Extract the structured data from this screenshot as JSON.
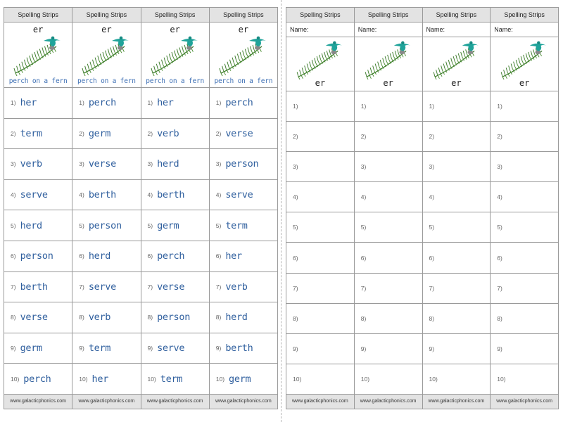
{
  "strip_title": "Spelling Strips",
  "sound": "er",
  "caption": "perch on a fern",
  "footer": "www.galacticphonics.com",
  "name_label": "Name:",
  "numbers": [
    "1)",
    "2)",
    "3)",
    "4)",
    "5)",
    "6)",
    "7)",
    "8)",
    "9)",
    "10)"
  ],
  "lists": [
    [
      "her",
      "term",
      "verb",
      "serve",
      "herd",
      "person",
      "berth",
      "verse",
      "germ",
      "perch"
    ],
    [
      "perch",
      "germ",
      "verse",
      "berth",
      "person",
      "herd",
      "serve",
      "verb",
      "term",
      "her"
    ],
    [
      "her",
      "verb",
      "herd",
      "berth",
      "germ",
      "perch",
      "verse",
      "person",
      "serve",
      "term"
    ],
    [
      "perch",
      "verse",
      "person",
      "serve",
      "term",
      "her",
      "verb",
      "herd",
      "berth",
      "germ"
    ]
  ],
  "icons": {
    "illustration": "bird-on-fern-icon",
    "bird_color": "#1fa39a",
    "fern_color": "#3f7d2e"
  }
}
